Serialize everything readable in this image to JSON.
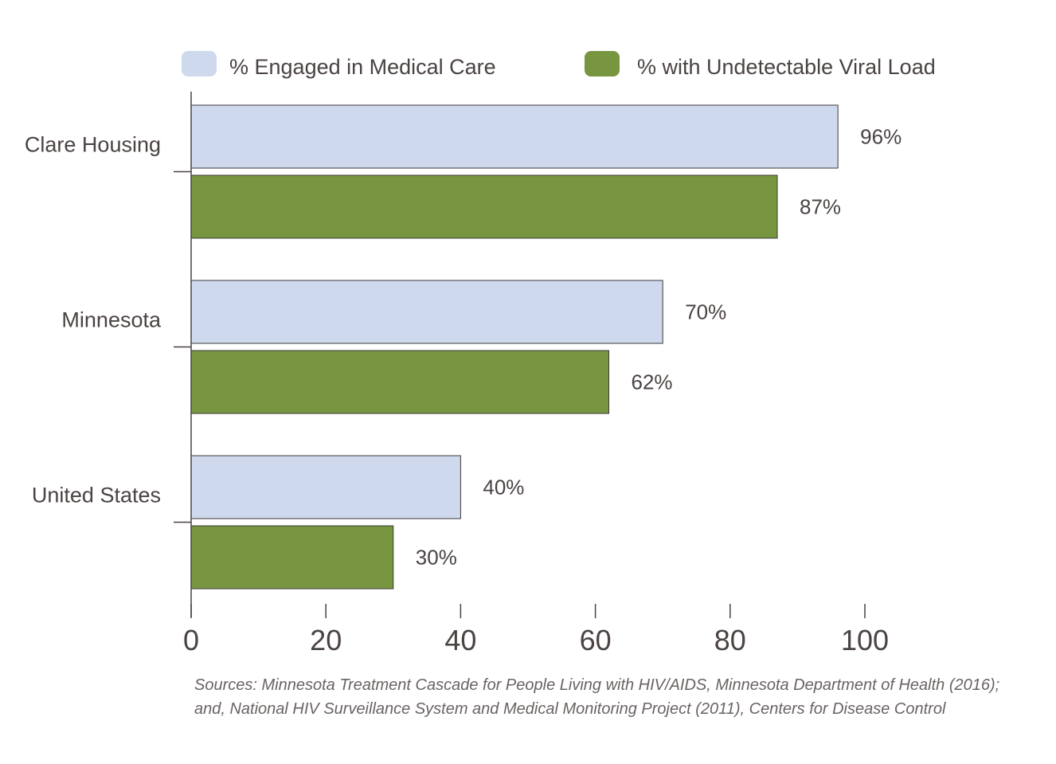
{
  "colors": {
    "engaged": "#cfd9ee",
    "viral": "#789640",
    "text": "#4a4342",
    "axis": "#4a4342",
    "bar_stroke": "#3a3a3a"
  },
  "chart_data": {
    "type": "bar",
    "orientation": "horizontal",
    "categories": [
      "Clare Housing",
      "Minnesota",
      "United States"
    ],
    "series": [
      {
        "name": "% Engaged in Medical Care",
        "values": [
          96,
          70,
          40
        ],
        "labels": [
          "96%",
          "70%",
          "40%"
        ]
      },
      {
        "name": "% with Undetectable Viral Load",
        "values": [
          87,
          62,
          30
        ],
        "labels": [
          "87%",
          "62%",
          "30%"
        ]
      }
    ],
    "xlim": [
      0,
      100
    ],
    "xticks": [
      0,
      20,
      40,
      60,
      80,
      100
    ],
    "tick_labels": [
      "0",
      "20",
      "40",
      "60",
      "80",
      "100"
    ],
    "xlabel": "",
    "ylabel": "",
    "grid": false,
    "legend_position": "top"
  },
  "source": {
    "line1": "Sources: Minnesota Treatment Cascade for People Living with HIV/AIDS, Minnesota Department of Health (2016);",
    "line2": "and, National HIV Surveillance System and Medical Monitoring Project (2011), Centers for Disease Control"
  }
}
